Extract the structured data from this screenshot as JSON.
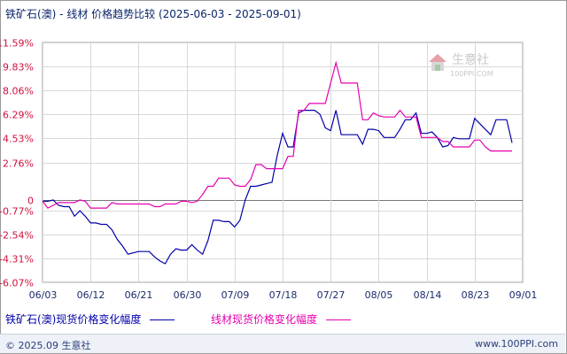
{
  "header": {
    "title": "铁矿石(澳) - 线材 价格趋势比较",
    "range": "(2025-06-03 - 2025-09-01)"
  },
  "watermark": {
    "name": "生意社",
    "url": "100PPI.COM"
  },
  "legend": {
    "series1": "铁矿石(澳)现货价格变化幅度",
    "series2": "线材现货价格变化幅度"
  },
  "footer": {
    "copyright": "© 2025.09 生意社",
    "site": "www.100PPI.com"
  },
  "colors": {
    "series1": "#0000aa",
    "series2": "#e600b0",
    "grid": "#d8d8d8",
    "axisText": "#d0103a",
    "xText": "#1a2a6c"
  },
  "chart_data": {
    "type": "line",
    "title": "铁矿石(澳) - 线材 价格趋势比较",
    "ylim": [
      -6.07,
      11.59
    ],
    "y_ticks": [
      "11.59%",
      "9.83%",
      "8.06%",
      "6.29%",
      "4.53%",
      "2.76%",
      "0",
      "-0.77%",
      "-2.54%",
      "-4.31%",
      "-6.07%"
    ],
    "y_tick_values": [
      11.59,
      9.83,
      8.06,
      6.29,
      4.53,
      2.76,
      0,
      -0.77,
      -2.54,
      -4.31,
      -6.07
    ],
    "x_ticks": [
      "06/03",
      "06/12",
      "06/21",
      "06/30",
      "07/09",
      "07/18",
      "07/27",
      "08/05",
      "08/14",
      "08/23",
      "09/01"
    ],
    "x_range_days": 90,
    "grid": true,
    "legend_position": "bottom",
    "series": [
      {
        "name": "铁矿石(澳)现货价格变化幅度",
        "color": "#0000aa",
        "points": [
          [
            0,
            -0.1
          ],
          [
            1,
            -0.1
          ],
          [
            2,
            0
          ],
          [
            3,
            -0.4
          ],
          [
            4,
            -0.5
          ],
          [
            5,
            -0.5
          ],
          [
            6,
            -1.2
          ],
          [
            7,
            -0.8
          ],
          [
            8,
            -1.2
          ],
          [
            9,
            -1.7
          ],
          [
            10,
            -1.7
          ],
          [
            11,
            -1.8
          ],
          [
            12,
            -1.8
          ],
          [
            13,
            -2.2
          ],
          [
            14,
            -2.9
          ],
          [
            15,
            -3.4
          ],
          [
            16,
            -4.0
          ],
          [
            17,
            -3.9
          ],
          [
            18,
            -3.8
          ],
          [
            19,
            -3.8
          ],
          [
            20,
            -3.8
          ],
          [
            21,
            -4.2
          ],
          [
            22,
            -4.5
          ],
          [
            23,
            -4.7
          ],
          [
            24,
            -4.0
          ],
          [
            25,
            -3.6
          ],
          [
            26,
            -3.7
          ],
          [
            27,
            -3.7
          ],
          [
            28,
            -3.3
          ],
          [
            29,
            -3.7
          ],
          [
            30,
            -4.0
          ],
          [
            31,
            -3.0
          ],
          [
            32,
            -1.5
          ],
          [
            33,
            -1.5
          ],
          [
            34,
            -1.6
          ],
          [
            35,
            -1.6
          ],
          [
            36,
            -2.0
          ],
          [
            37,
            -1.5
          ],
          [
            38,
            0
          ],
          [
            39,
            1.0
          ],
          [
            40,
            1.0
          ],
          [
            41,
            1.1
          ],
          [
            42,
            1.2
          ],
          [
            43,
            1.3
          ],
          [
            44,
            3.3
          ],
          [
            45,
            4.9
          ],
          [
            46,
            3.9
          ],
          [
            47,
            3.9
          ],
          [
            48,
            6.4
          ],
          [
            49,
            6.6
          ],
          [
            50,
            6.6
          ],
          [
            51,
            6.6
          ],
          [
            52,
            6.3
          ],
          [
            53,
            5.3
          ],
          [
            54,
            5.1
          ],
          [
            55,
            6.6
          ],
          [
            56,
            4.8
          ],
          [
            57,
            4.8
          ],
          [
            58,
            4.8
          ],
          [
            59,
            4.8
          ],
          [
            60,
            4.1
          ],
          [
            61,
            5.2
          ],
          [
            62,
            5.2
          ],
          [
            63,
            5.1
          ],
          [
            64,
            4.6
          ],
          [
            65,
            4.6
          ],
          [
            66,
            4.6
          ],
          [
            67,
            5.2
          ],
          [
            68,
            5.9
          ],
          [
            69,
            5.9
          ],
          [
            70,
            6.4
          ],
          [
            71,
            4.9
          ],
          [
            72,
            4.9
          ],
          [
            73,
            5.0
          ],
          [
            74,
            4.6
          ],
          [
            75,
            3.9
          ],
          [
            76,
            4.0
          ],
          [
            77,
            4.6
          ],
          [
            78,
            4.5
          ],
          [
            79,
            4.5
          ],
          [
            80,
            4.5
          ],
          [
            81,
            6.0
          ],
          [
            82,
            5.6
          ],
          [
            83,
            5.2
          ],
          [
            84,
            4.8
          ],
          [
            85,
            5.9
          ],
          [
            86,
            5.9
          ],
          [
            87,
            5.9
          ],
          [
            88,
            4.2
          ]
        ]
      },
      {
        "name": "线材现货价格变化幅度",
        "color": "#e600b0",
        "points": [
          [
            0,
            -0.1
          ],
          [
            1,
            -0.6
          ],
          [
            2,
            -0.4
          ],
          [
            3,
            -0.2
          ],
          [
            4,
            -0.2
          ],
          [
            5,
            -0.2
          ],
          [
            6,
            -0.2
          ],
          [
            7,
            0
          ],
          [
            8,
            -0.1
          ],
          [
            9,
            -0.6
          ],
          [
            10,
            -0.6
          ],
          [
            11,
            -0.6
          ],
          [
            12,
            -0.6
          ],
          [
            13,
            -0.2
          ],
          [
            14,
            -0.3
          ],
          [
            15,
            -0.3
          ],
          [
            16,
            -0.3
          ],
          [
            17,
            -0.3
          ],
          [
            18,
            -0.3
          ],
          [
            19,
            -0.3
          ],
          [
            20,
            -0.3
          ],
          [
            21,
            -0.5
          ],
          [
            22,
            -0.5
          ],
          [
            23,
            -0.3
          ],
          [
            24,
            -0.3
          ],
          [
            25,
            -0.3
          ],
          [
            26,
            -0.1
          ],
          [
            27,
            -0.1
          ],
          [
            28,
            -0.2
          ],
          [
            29,
            -0.1
          ],
          [
            30,
            0.4
          ],
          [
            31,
            1.0
          ],
          [
            32,
            1.0
          ],
          [
            33,
            1.6
          ],
          [
            34,
            1.6
          ],
          [
            35,
            1.6
          ],
          [
            36,
            1.1
          ],
          [
            37,
            1.0
          ],
          [
            38,
            1.0
          ],
          [
            39,
            1.5
          ],
          [
            40,
            2.6
          ],
          [
            41,
            2.6
          ],
          [
            42,
            2.3
          ],
          [
            43,
            2.3
          ],
          [
            44,
            2.3
          ],
          [
            45,
            2.3
          ],
          [
            46,
            3.2
          ],
          [
            47,
            3.2
          ],
          [
            48,
            6.6
          ],
          [
            49,
            6.6
          ],
          [
            50,
            7.1
          ],
          [
            51,
            7.1
          ],
          [
            52,
            7.1
          ],
          [
            53,
            7.1
          ],
          [
            54,
            8.6
          ],
          [
            55,
            10.1
          ],
          [
            56,
            8.6
          ],
          [
            57,
            8.6
          ],
          [
            58,
            8.6
          ],
          [
            59,
            8.6
          ],
          [
            60,
            5.9
          ],
          [
            61,
            5.9
          ],
          [
            62,
            6.4
          ],
          [
            63,
            6.2
          ],
          [
            64,
            6.1
          ],
          [
            65,
            6.1
          ],
          [
            66,
            6.1
          ],
          [
            67,
            6.6
          ],
          [
            68,
            6.1
          ],
          [
            69,
            6.1
          ],
          [
            70,
            6.1
          ],
          [
            71,
            4.6
          ],
          [
            72,
            4.6
          ],
          [
            73,
            4.6
          ],
          [
            74,
            4.6
          ],
          [
            75,
            4.3
          ],
          [
            76,
            4.3
          ],
          [
            77,
            3.9
          ],
          [
            78,
            3.9
          ],
          [
            79,
            3.9
          ],
          [
            80,
            3.9
          ],
          [
            81,
            4.4
          ],
          [
            82,
            4.4
          ],
          [
            83,
            3.9
          ],
          [
            84,
            3.6
          ],
          [
            85,
            3.6
          ],
          [
            86,
            3.6
          ],
          [
            87,
            3.6
          ],
          [
            88,
            3.6
          ]
        ]
      }
    ]
  }
}
